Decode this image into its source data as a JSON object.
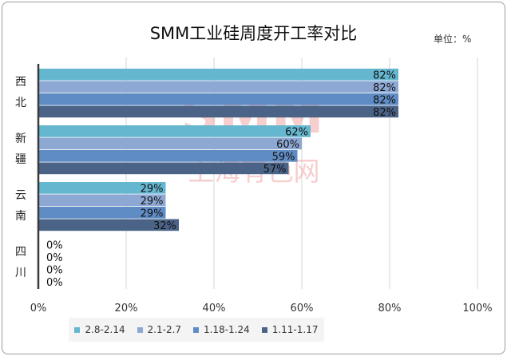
{
  "chart_data": {
    "type": "bar",
    "orientation": "horizontal",
    "title": "SMM工业硅周度开工率对比",
    "unit_label": "单位：%",
    "categories": [
      {
        "chars": [
          "西",
          "北"
        ]
      },
      {
        "chars": [
          "新",
          "疆"
        ]
      },
      {
        "chars": [
          "云",
          "南"
        ]
      },
      {
        "chars": [
          "四",
          "川"
        ]
      }
    ],
    "series": [
      {
        "name": "2.8-2.14",
        "color": "#65b7d0",
        "values": [
          82,
          62,
          29,
          0
        ]
      },
      {
        "name": "2.1-2.7",
        "color": "#8ea8d4",
        "values": [
          82,
          60,
          29,
          0
        ]
      },
      {
        "name": "1.18-1.24",
        "color": "#5f8cc4",
        "values": [
          82,
          59,
          29,
          0
        ]
      },
      {
        "name": "1.11-1.17",
        "color": "#4a6387",
        "values": [
          82,
          57,
          32,
          0
        ]
      }
    ],
    "value_suffix": "%",
    "xlim": [
      0,
      100
    ],
    "ticks": [
      0,
      20,
      40,
      60,
      80,
      100
    ],
    "tick_labels": [
      "0%",
      "20%",
      "40%",
      "60%",
      "80%",
      "100%"
    ],
    "grid": true,
    "legend_position": "bottom-left"
  },
  "watermark": {
    "line1": "SMM",
    "line2": "上海有色网",
    "color": "#f2a7a7"
  }
}
